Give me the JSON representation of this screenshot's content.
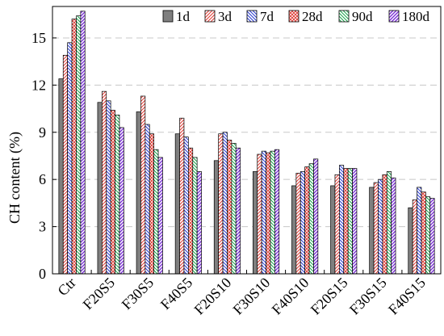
{
  "chart_data": {
    "type": "bar",
    "title": "",
    "xlabel": "",
    "ylabel": "CH content (%)",
    "ylim": [
      0,
      17
    ],
    "yticks": [
      0,
      3,
      6,
      9,
      12,
      15
    ],
    "grid": "horizontal-dashed",
    "legend_position": "top-right",
    "categories": [
      "Ctr",
      "F20S5",
      "F30S5",
      "F40S5",
      "F20S10",
      "F30S10",
      "F40S10",
      "F20S15",
      "F30S15",
      "F40S15"
    ],
    "series": [
      {
        "name": "1d",
        "pattern": "solid-gray",
        "color": "#7f7f7f",
        "values": [
          12.4,
          10.9,
          10.3,
          8.9,
          7.2,
          6.5,
          5.6,
          5.6,
          5.5,
          4.2
        ]
      },
      {
        "name": "3d",
        "pattern": "diagonal-red",
        "color": "#e0413a",
        "values": [
          13.9,
          11.6,
          11.3,
          9.9,
          8.9,
          7.6,
          6.4,
          6.3,
          5.8,
          4.7
        ]
      },
      {
        "name": "7d",
        "pattern": "diagonal-blue",
        "color": "#2d3fd1",
        "values": [
          14.7,
          11.0,
          9.5,
          8.7,
          9.0,
          7.8,
          6.5,
          6.9,
          6.0,
          5.5
        ]
      },
      {
        "name": "28d",
        "pattern": "crosshatch-red",
        "color": "#e0413a",
        "values": [
          16.2,
          10.4,
          8.9,
          8.0,
          8.5,
          7.7,
          6.8,
          6.7,
          6.3,
          5.2
        ]
      },
      {
        "name": "90d",
        "pattern": "diagonal-green",
        "color": "#18a34a",
        "values": [
          16.4,
          10.1,
          7.9,
          7.4,
          8.3,
          7.8,
          7.0,
          6.7,
          6.5,
          4.9
        ]
      },
      {
        "name": "180d",
        "pattern": "diagonal-purple",
        "color": "#7a2fd6",
        "values": [
          16.7,
          9.3,
          7.4,
          6.5,
          8.0,
          7.9,
          7.3,
          6.7,
          6.1,
          4.8
        ]
      }
    ]
  }
}
